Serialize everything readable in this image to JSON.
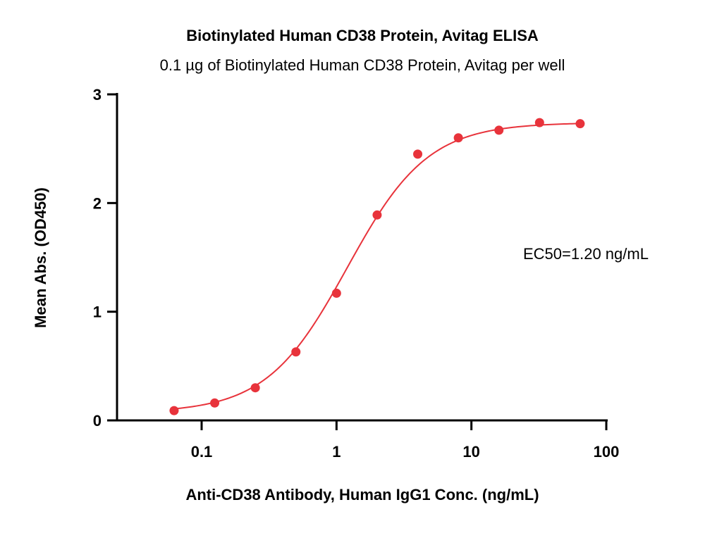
{
  "chart_data": {
    "type": "scatter",
    "title": "Biotinylated Human CD38 Protein, Avitag ELISA",
    "subtitle": "0.1 µg of Biotinylated Human CD38 Protein, Avitag per well",
    "xlabel": "Anti-CD38 Antibody, Human IgG1 Conc. (ng/mL)",
    "ylabel": "Mean Abs. (OD450)",
    "xscale": "log",
    "xlim": [
      0.03,
      100
    ],
    "ylim": [
      0,
      3
    ],
    "x_ticks": [
      0.1,
      1,
      10,
      100
    ],
    "x_tick_labels": [
      "0.1",
      "1",
      "10",
      "100"
    ],
    "y_ticks": [
      0,
      1,
      2,
      3
    ],
    "y_tick_labels": [
      "0",
      "1",
      "2",
      "3"
    ],
    "grid": false,
    "annotation": "EC50=1.20 ng/mL",
    "series": [
      {
        "marker_color": "#e8333b",
        "curve": "4PL fit",
        "x": [
          0.0625,
          0.125,
          0.25,
          0.5,
          1,
          2,
          4,
          8,
          16,
          32,
          64
        ],
        "y": [
          0.09,
          0.16,
          0.3,
          0.63,
          1.17,
          1.89,
          2.45,
          2.6,
          2.67,
          2.74,
          2.73
        ]
      }
    ],
    "fit": {
      "bottom": 0.07,
      "top": 2.74,
      "ec50": 1.2,
      "hill": 1.45
    }
  }
}
